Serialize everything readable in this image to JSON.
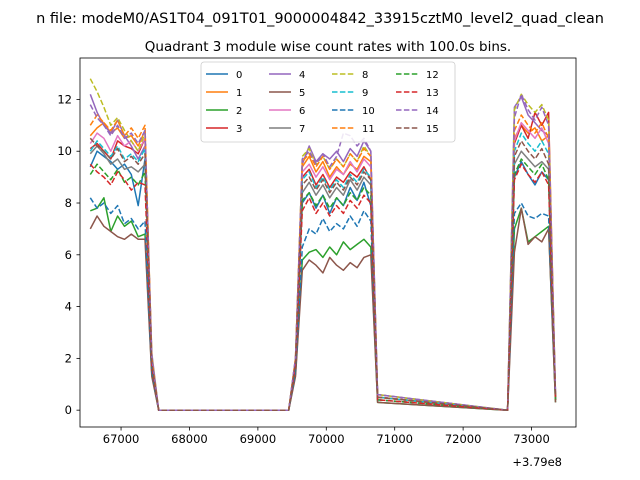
{
  "figure": {
    "suptitle": "n file: modeM0/AS1T04_091T01_9000004842_33915cztM0_level2_quad_clean",
    "title": "Quadrant 3 module wise count rates with 100.0s bins.",
    "offset_text": "+3.79e8"
  },
  "chart_data": {
    "type": "line",
    "title": "Quadrant 3 module wise count rates with 100.0s bins.",
    "xlabel": "",
    "ylabel": "",
    "x_offset": 379000000,
    "xlim": [
      66400,
      73650
    ],
    "ylim": [
      -0.65,
      13.6
    ],
    "xticks": [
      67000,
      68000,
      69000,
      70000,
      71000,
      72000,
      73000
    ],
    "yticks": [
      0,
      2,
      4,
      6,
      8,
      10,
      12
    ],
    "grid": false,
    "legend": {
      "placement": "upper center",
      "columns": 4
    },
    "x": [
      66550,
      66650,
      66750,
      66850,
      66950,
      67050,
      67150,
      67250,
      67350,
      67450,
      67550,
      69450,
      69550,
      69650,
      69750,
      69850,
      69950,
      70050,
      70150,
      70250,
      70350,
      70450,
      70550,
      70650,
      70750,
      72650,
      72750,
      72850,
      72950,
      73050,
      73150,
      73250,
      73350
    ],
    "series": [
      {
        "name": "0",
        "color": "#1f77b4",
        "dash": "solid",
        "values": [
          9.4,
          10.0,
          9.8,
          9.6,
          9.3,
          9.5,
          9.1,
          7.9,
          9.7,
          1.8,
          0,
          0,
          1.7,
          8.0,
          8.4,
          7.8,
          8.3,
          7.6,
          8.2,
          7.9,
          8.6,
          8.1,
          8.8,
          7.9,
          0.5,
          0,
          9.0,
          9.6,
          9.1,
          8.7,
          9.2,
          8.9,
          0.4
        ]
      },
      {
        "name": "1",
        "color": "#ff7f0e",
        "dash": "solid",
        "values": [
          10.6,
          10.9,
          11.1,
          10.7,
          10.9,
          10.5,
          10.6,
          10.2,
          10.8,
          1.9,
          0,
          0,
          1.9,
          9.4,
          9.8,
          9.2,
          9.6,
          9.0,
          9.4,
          9.1,
          9.5,
          9.3,
          9.8,
          9.6,
          0.5,
          0,
          10.5,
          11.0,
          10.7,
          10.9,
          10.4,
          10.6,
          0.5
        ]
      },
      {
        "name": "2",
        "color": "#2ca02c",
        "dash": "solid",
        "values": [
          7.7,
          7.8,
          8.2,
          6.9,
          7.5,
          7.1,
          7.3,
          6.7,
          6.8,
          1.4,
          0,
          0,
          1.4,
          5.8,
          6.1,
          6.2,
          5.9,
          6.3,
          6.0,
          6.5,
          6.2,
          6.4,
          6.6,
          6.3,
          0.3,
          0,
          7.0,
          7.8,
          6.5,
          6.7,
          6.9,
          7.1,
          0.3
        ]
      },
      {
        "name": "3",
        "color": "#d62728",
        "dash": "solid",
        "values": [
          10.1,
          10.3,
          10.0,
          9.7,
          10.4,
          10.2,
          10.1,
          9.9,
          10.5,
          1.8,
          0,
          0,
          1.8,
          9.0,
          9.3,
          8.7,
          9.1,
          8.6,
          9.0,
          8.8,
          9.2,
          9.0,
          9.4,
          8.9,
          0.5,
          0,
          10.3,
          11.0,
          10.5,
          11.5,
          11.0,
          11.5,
          0.4
        ]
      },
      {
        "name": "4",
        "color": "#9467bd",
        "dash": "solid",
        "values": [
          12.2,
          11.5,
          11.0,
          10.7,
          11.2,
          10.6,
          10.2,
          9.7,
          10.2,
          2.2,
          0,
          0,
          2.0,
          9.5,
          10.2,
          9.6,
          9.9,
          9.7,
          10.0,
          9.6,
          10.1,
          9.8,
          10.4,
          10.0,
          0.6,
          0,
          11.7,
          12.1,
          11.4,
          11.1,
          10.8,
          10.6,
          0.6
        ]
      },
      {
        "name": "5",
        "color": "#8c564b",
        "dash": "solid",
        "values": [
          7.0,
          7.5,
          7.1,
          6.9,
          6.7,
          6.6,
          6.8,
          6.6,
          6.6,
          1.3,
          0,
          0,
          1.3,
          5.4,
          5.8,
          5.6,
          5.3,
          5.9,
          5.6,
          5.4,
          5.7,
          5.5,
          5.9,
          6.0,
          0.3,
          0,
          6.1,
          7.8,
          6.4,
          6.7,
          6.5,
          7.0,
          0.3
        ]
      },
      {
        "name": "6",
        "color": "#e377c2",
        "dash": "solid",
        "values": [
          10.3,
          10.7,
          10.5,
          10.0,
          10.6,
          10.2,
          10.4,
          10.0,
          10.5,
          1.9,
          0,
          0,
          1.9,
          9.2,
          9.5,
          9.0,
          9.4,
          8.9,
          9.3,
          9.1,
          9.6,
          9.2,
          9.7,
          9.4,
          0.5,
          0,
          10.4,
          11.1,
          10.8,
          10.5,
          10.9,
          10.3,
          0.5
        ]
      },
      {
        "name": "7",
        "color": "#7f7f7f",
        "dash": "solid",
        "values": [
          9.9,
          10.2,
          9.9,
          9.5,
          9.7,
          9.3,
          9.4,
          9.2,
          9.5,
          1.8,
          0,
          0,
          1.7,
          8.4,
          8.8,
          8.3,
          8.7,
          8.2,
          8.6,
          8.3,
          8.9,
          8.5,
          9.0,
          8.7,
          0.5,
          0,
          9.5,
          10.0,
          9.7,
          9.4,
          9.6,
          9.3,
          0.4
        ]
      },
      {
        "name": "8",
        "color": "#bcbd22",
        "dash": "dashed",
        "values": [
          12.8,
          12.3,
          11.7,
          11.0,
          11.3,
          10.8,
          10.4,
          10.0,
          10.7,
          2.1,
          0,
          0,
          2.0,
          9.8,
          10.1,
          9.5,
          9.8,
          9.3,
          9.7,
          9.4,
          9.9,
          9.6,
          10.2,
          9.8,
          0.6,
          0,
          11.6,
          12.2,
          11.8,
          11.5,
          11.8,
          11.2,
          0.6
        ]
      },
      {
        "name": "9",
        "color": "#17becf",
        "dash": "dashed",
        "values": [
          10.0,
          10.4,
          10.1,
          9.8,
          10.2,
          9.7,
          9.9,
          9.6,
          10.1,
          1.8,
          0,
          0,
          1.8,
          8.9,
          9.2,
          8.6,
          9.0,
          8.5,
          8.9,
          8.6,
          9.1,
          8.8,
          9.3,
          9.0,
          0.5,
          0,
          10.0,
          10.7,
          10.3,
          10.0,
          10.4,
          9.9,
          0.5
        ]
      },
      {
        "name": "10",
        "color": "#1f77b4",
        "dash": "dashed",
        "values": [
          8.2,
          7.8,
          8.0,
          7.6,
          7.9,
          7.2,
          7.4,
          7.0,
          7.3,
          1.5,
          0,
          0,
          1.5,
          6.3,
          7.0,
          6.8,
          7.4,
          6.9,
          7.2,
          7.0,
          7.5,
          7.1,
          7.7,
          7.3,
          0.4,
          0,
          7.6,
          8.0,
          7.5,
          7.4,
          7.6,
          7.5,
          0.4
        ]
      },
      {
        "name": "11",
        "color": "#ff7f0e",
        "dash": "dashed",
        "values": [
          11.0,
          11.4,
          11.1,
          10.8,
          11.2,
          10.6,
          10.9,
          10.5,
          11.0,
          2.0,
          0,
          0,
          2.0,
          9.6,
          9.9,
          9.4,
          9.8,
          9.3,
          9.7,
          9.4,
          9.9,
          9.6,
          10.1,
          9.8,
          0.5,
          0,
          10.8,
          11.4,
          11.0,
          10.7,
          11.1,
          10.5,
          0.5
        ]
      },
      {
        "name": "12",
        "color": "#2ca02c",
        "dash": "dashed",
        "values": [
          9.1,
          9.5,
          9.2,
          8.9,
          9.3,
          8.8,
          9.0,
          8.7,
          9.2,
          1.7,
          0,
          0,
          1.7,
          8.1,
          8.4,
          7.9,
          8.3,
          7.8,
          8.2,
          7.9,
          8.4,
          8.1,
          8.6,
          8.3,
          0.4,
          0,
          9.1,
          9.7,
          9.4,
          9.1,
          9.5,
          8.9,
          0.4
        ]
      },
      {
        "name": "13",
        "color": "#d62728",
        "dash": "dashed",
        "values": [
          9.5,
          9.2,
          9.0,
          8.7,
          9.2,
          8.9,
          8.5,
          8.8,
          8.7,
          1.7,
          0,
          0,
          1.7,
          7.7,
          8.2,
          7.6,
          8.0,
          7.5,
          7.9,
          7.6,
          8.1,
          7.8,
          8.3,
          8.0,
          0.4,
          0,
          8.9,
          9.5,
          9.1,
          8.8,
          9.2,
          8.7,
          0.4
        ]
      },
      {
        "name": "14",
        "color": "#9467bd",
        "dash": "dashed",
        "values": [
          11.8,
          11.3,
          11.0,
          10.6,
          11.0,
          10.5,
          10.7,
          10.3,
          10.8,
          2.0,
          0,
          0,
          2.0,
          9.7,
          10.0,
          9.5,
          9.9,
          9.4,
          9.8,
          10.7,
          10.6,
          10.2,
          10.5,
          10.0,
          0.6,
          0,
          11.3,
          12.2,
          11.6,
          11.2,
          11.7,
          11.0,
          0.6
        ]
      },
      {
        "name": "15",
        "color": "#8c564b",
        "dash": "dashed",
        "values": [
          10.5,
          10.2,
          10.0,
          9.7,
          10.1,
          9.6,
          9.8,
          9.5,
          9.9,
          1.8,
          0,
          0,
          1.8,
          8.7,
          9.0,
          8.5,
          8.9,
          8.4,
          8.8,
          8.5,
          9.0,
          8.7,
          9.2,
          8.9,
          0.5,
          0,
          9.8,
          10.4,
          10.0,
          9.7,
          10.1,
          9.5,
          0.5
        ]
      }
    ]
  }
}
